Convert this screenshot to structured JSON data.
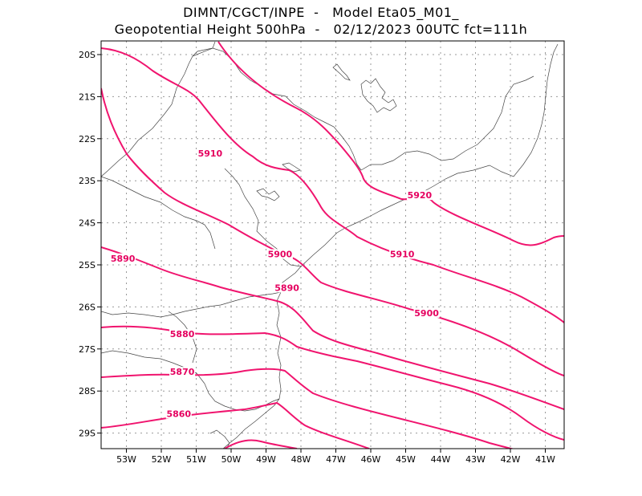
{
  "title_line1": "DIMNT/CGCT/INPE  -   Model Eta05_M01_",
  "title_line2": "Geopotential Height 500hPa  -   02/12/2023 00UTC fct=111h",
  "lat_ticks": [
    "20S",
    "21S",
    "22S",
    "23S",
    "24S",
    "25S",
    "26S",
    "27S",
    "28S",
    "29S"
  ],
  "lon_ticks": [
    "53W",
    "52W",
    "51W",
    "50W",
    "49W",
    "48W",
    "47W",
    "46W",
    "45W",
    "44W",
    "43W",
    "42W",
    "41W"
  ],
  "contour_labels": [
    {
      "text": "5920",
      "lon": -44.6,
      "lat": -23.4
    },
    {
      "text": "5910",
      "lon": -50.6,
      "lat": -22.4
    },
    {
      "text": "5910",
      "lon": -45.1,
      "lat": -24.8
    },
    {
      "text": "5900",
      "lon": -48.6,
      "lat": -24.8
    },
    {
      "text": "5900",
      "lon": -44.4,
      "lat": -26.2
    },
    {
      "text": "5890",
      "lon": -53.1,
      "lat": -24.9
    },
    {
      "text": "5890",
      "lon": -48.4,
      "lat": -25.6
    },
    {
      "text": "5880",
      "lon": -51.4,
      "lat": -26.7
    },
    {
      "text": "5870",
      "lon": -51.4,
      "lat": -27.6
    },
    {
      "text": "5860",
      "lon": -51.5,
      "lat": -28.6
    }
  ],
  "colors": {
    "contour": "#f0146e",
    "label": "#e5005f",
    "border": "#444444",
    "grid": "#999999"
  }
}
